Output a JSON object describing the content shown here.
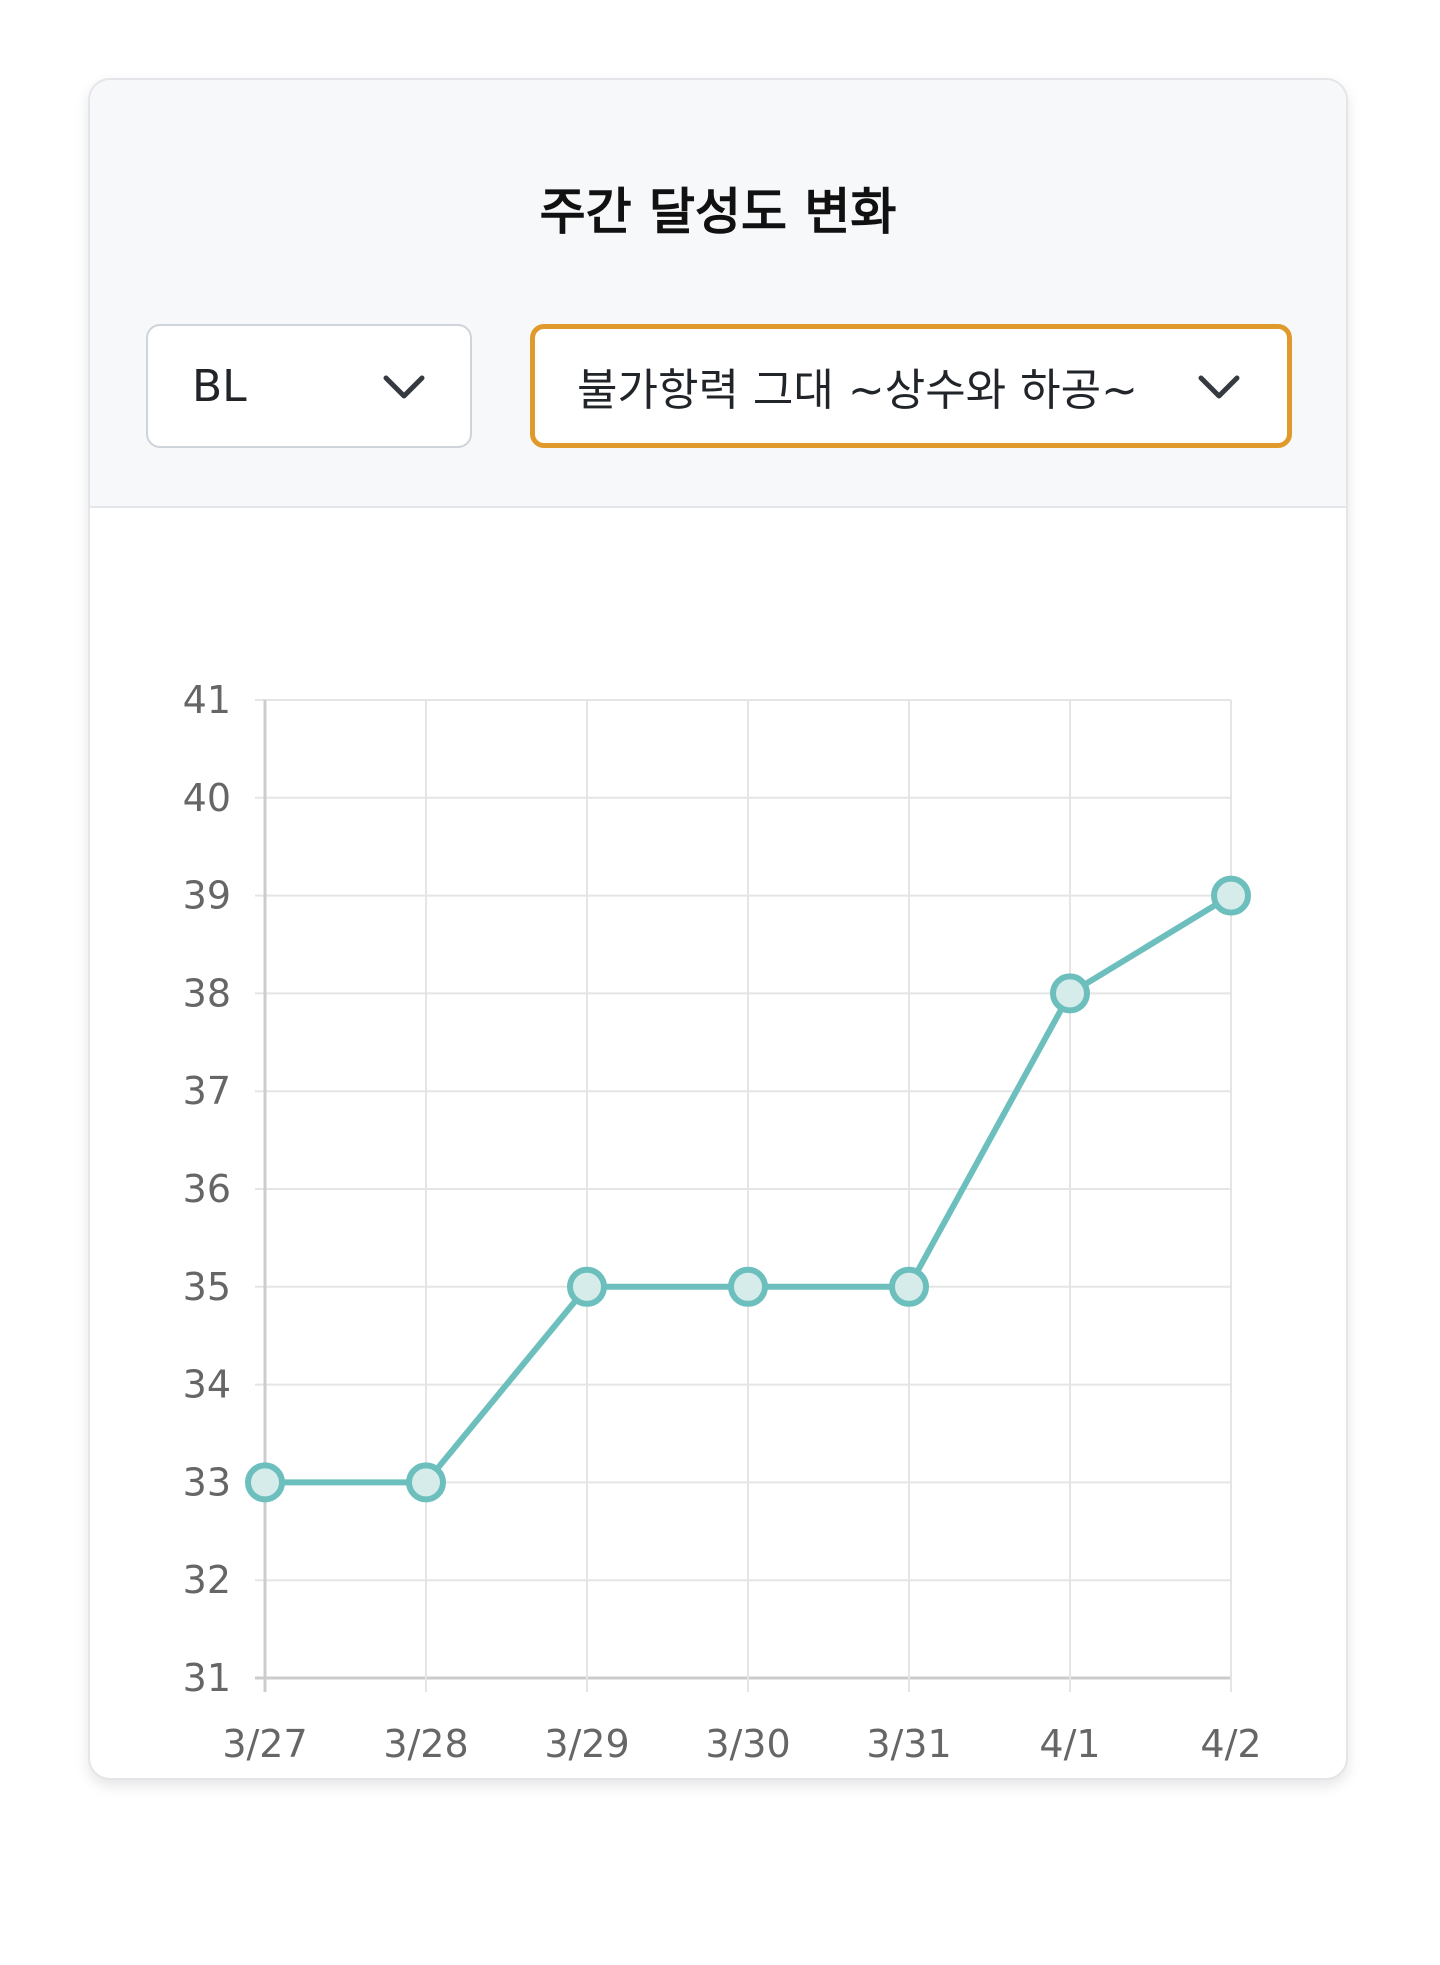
{
  "header": {
    "title": "주간 달성도 변화"
  },
  "filters": {
    "category": {
      "value": "BL",
      "icon": "chevron-down-icon"
    },
    "work": {
      "value": "불가항력 그대 ~상수와 하공~",
      "icon": "chevron-down-icon",
      "accent_color": "#e09a2c"
    }
  },
  "chart_data": {
    "type": "line",
    "title": "",
    "xlabel": "",
    "ylabel": "",
    "categories": [
      "3/27",
      "3/28",
      "3/29",
      "3/30",
      "3/31",
      "4/1",
      "4/2"
    ],
    "series": [
      {
        "values": [
          33,
          33,
          35,
          35,
          35,
          38,
          39
        ],
        "color": "#6cbfbd"
      }
    ],
    "ylim": [
      31,
      41
    ],
    "yticks": [
      41,
      40,
      39,
      38,
      37,
      36,
      35,
      34,
      33,
      32,
      31
    ],
    "grid": true,
    "legend": "none"
  }
}
